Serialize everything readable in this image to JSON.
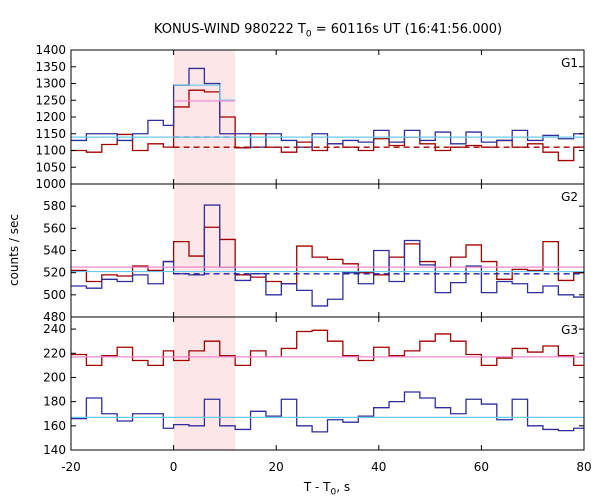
{
  "title": {
    "main": "KONUS-WIND 980222 T",
    "sub": "0",
    "rest": " = 60116s UT (16:41:56.000)"
  },
  "xlabel": {
    "main": "T - T",
    "sub": "0",
    "rest": ", s"
  },
  "ylabel": "counts / sec",
  "colors": {
    "red": "#a00000",
    "blue": "#2e2e9a",
    "cyan": "#6cc8e8",
    "pink": "#ee88cc",
    "shade": "#fde6e8",
    "darkred_dash": "#a00000",
    "darkblue_dash": "#1f1fa0"
  },
  "chart_data": [
    {
      "type": "line",
      "panel": "G1",
      "xlim": [
        -20,
        80
      ],
      "ylim": [
        1000,
        1400
      ],
      "yticks": [
        1000,
        1050,
        1100,
        1150,
        1200,
        1250,
        1300,
        1350,
        1400
      ],
      "highlight_interval": [
        0,
        12
      ],
      "series": [
        {
          "color": "red",
          "style": "step",
          "x": [
            -20,
            -17,
            -14,
            -11,
            -8,
            -5,
            -2,
            0,
            3,
            6,
            9,
            12,
            15,
            18,
            21,
            24,
            27,
            30,
            33,
            36,
            39,
            42,
            45,
            48,
            51,
            54,
            57,
            60,
            63,
            66,
            69,
            72,
            75,
            78
          ],
          "values": [
            1100,
            1095,
            1118,
            1148,
            1100,
            1120,
            1110,
            1230,
            1280,
            1275,
            1200,
            1108,
            1150,
            1110,
            1095,
            1125,
            1100,
            1120,
            1110,
            1100,
            1135,
            1115,
            1140,
            1120,
            1100,
            1110,
            1115,
            1110,
            1130,
            1110,
            1120,
            1095,
            1070,
            1110
          ]
        },
        {
          "color": "blue",
          "style": "step",
          "x": [
            -20,
            -17,
            -14,
            -11,
            -8,
            -5,
            -2,
            0,
            3,
            6,
            9,
            12,
            15,
            18,
            21,
            24,
            27,
            30,
            33,
            36,
            39,
            42,
            45,
            48,
            51,
            54,
            57,
            60,
            63,
            66,
            69,
            72,
            75,
            78
          ],
          "values": [
            1130,
            1150,
            1150,
            1130,
            1150,
            1190,
            1175,
            1295,
            1345,
            1300,
            1150,
            1150,
            1110,
            1150,
            1130,
            1110,
            1150,
            1120,
            1130,
            1125,
            1160,
            1125,
            1160,
            1130,
            1155,
            1120,
            1155,
            1125,
            1130,
            1160,
            1130,
            1145,
            1135,
            1150
          ]
        },
        {
          "color": "cyan",
          "style": "step",
          "x": [
            0,
            5,
            9,
            12
          ],
          "values": [
            1295,
            1295,
            1250,
            1250
          ],
          "segment": true
        },
        {
          "color": "pink",
          "style": "step",
          "x": [
            0,
            12
          ],
          "values": [
            1248,
            1248
          ],
          "segment": true
        },
        {
          "color": "darkblue_dash",
          "style": "dashed",
          "x": [
            0,
            12
          ],
          "values": [
            1140,
            1140
          ]
        },
        {
          "color": "darkred_dash",
          "style": "dashed",
          "x": [
            0,
            80
          ],
          "values": [
            1110,
            1110
          ]
        },
        {
          "color": "cyan",
          "style": "flat",
          "x": [
            -20,
            80
          ],
          "values": [
            1140,
            1140
          ]
        }
      ]
    },
    {
      "type": "line",
      "panel": "G2",
      "xlim": [
        -20,
        80
      ],
      "ylim": [
        480,
        600
      ],
      "yticks": [
        480,
        500,
        520,
        540,
        560,
        580
      ],
      "highlight_interval": [
        0,
        12
      ],
      "series": [
        {
          "color": "red",
          "style": "step",
          "x": [
            -20,
            -17,
            -14,
            -11,
            -8,
            -5,
            -2,
            0,
            3,
            6,
            9,
            12,
            15,
            18,
            21,
            24,
            27,
            30,
            33,
            36,
            39,
            42,
            45,
            48,
            51,
            54,
            57,
            60,
            63,
            66,
            69,
            72,
            75,
            78
          ],
          "values": [
            522,
            512,
            518,
            517,
            526,
            522,
            530,
            548,
            535,
            561,
            550,
            518,
            516,
            512,
            510,
            544,
            534,
            532,
            528,
            520,
            518,
            534,
            546,
            530,
            525,
            534,
            545,
            530,
            514,
            523,
            522,
            548,
            513,
            520
          ]
        },
        {
          "color": "blue",
          "style": "step",
          "x": [
            -20,
            -17,
            -14,
            -11,
            -8,
            -5,
            -2,
            0,
            3,
            6,
            9,
            12,
            15,
            18,
            21,
            24,
            27,
            30,
            33,
            36,
            39,
            42,
            45,
            48,
            51,
            54,
            57,
            60,
            63,
            66,
            69,
            72,
            75,
            78
          ],
          "values": [
            508,
            506,
            514,
            512,
            518,
            510,
            530,
            519,
            518,
            581,
            525,
            513,
            519,
            500,
            510,
            504,
            490,
            496,
            520,
            510,
            540,
            512,
            549,
            527,
            502,
            511,
            526,
            502,
            512,
            510,
            502,
            508,
            500,
            498
          ]
        },
        {
          "color": "pink",
          "style": "flat",
          "x": [
            -20,
            80
          ],
          "values": [
            525,
            525
          ]
        },
        {
          "color": "darkblue_dash",
          "style": "dashed",
          "x": [
            0,
            80
          ],
          "values": [
            519,
            519
          ]
        },
        {
          "color": "cyan",
          "style": "flat",
          "x": [
            -20,
            80
          ],
          "values": [
            521,
            521
          ]
        }
      ]
    },
    {
      "type": "line",
      "panel": "G3",
      "xlim": [
        -20,
        80
      ],
      "ylim": [
        140,
        250
      ],
      "yticks": [
        140,
        160,
        180,
        200,
        220,
        240
      ],
      "highlight_interval": [
        0,
        12
      ],
      "series": [
        {
          "color": "red",
          "style": "step",
          "x": [
            -20,
            -17,
            -14,
            -11,
            -8,
            -5,
            -2,
            0,
            3,
            6,
            9,
            12,
            15,
            18,
            21,
            24,
            27,
            30,
            33,
            36,
            39,
            42,
            45,
            48,
            51,
            54,
            57,
            60,
            63,
            66,
            69,
            72,
            75,
            78
          ],
          "values": [
            219,
            210,
            218,
            225,
            214,
            210,
            222,
            214,
            222,
            230,
            218,
            210,
            222,
            217,
            224,
            238,
            239,
            230,
            218,
            214,
            225,
            218,
            222,
            230,
            236,
            230,
            219,
            210,
            216,
            224,
            221,
            226,
            218,
            210
          ]
        },
        {
          "color": "blue",
          "style": "step",
          "x": [
            -20,
            -17,
            -14,
            -11,
            -8,
            -5,
            -2,
            0,
            3,
            6,
            9,
            12,
            15,
            18,
            21,
            24,
            27,
            30,
            33,
            36,
            39,
            42,
            45,
            48,
            51,
            54,
            57,
            60,
            63,
            66,
            69,
            72,
            75,
            78
          ],
          "values": [
            166,
            183,
            170,
            164,
            170,
            170,
            158,
            161,
            160,
            182,
            160,
            157,
            172,
            168,
            182,
            160,
            155,
            165,
            163,
            168,
            175,
            180,
            188,
            183,
            175,
            170,
            182,
            178,
            165,
            182,
            160,
            157,
            156,
            158
          ]
        },
        {
          "color": "pink",
          "style": "flat",
          "x": [
            -20,
            80
          ],
          "values": [
            217,
            217
          ]
        },
        {
          "color": "cyan",
          "style": "flat",
          "x": [
            -20,
            80
          ],
          "values": [
            167,
            167
          ]
        }
      ]
    }
  ],
  "xticks": [
    -20,
    0,
    20,
    40,
    60,
    80
  ],
  "panel_labels": [
    "G1",
    "G2",
    "G3"
  ]
}
